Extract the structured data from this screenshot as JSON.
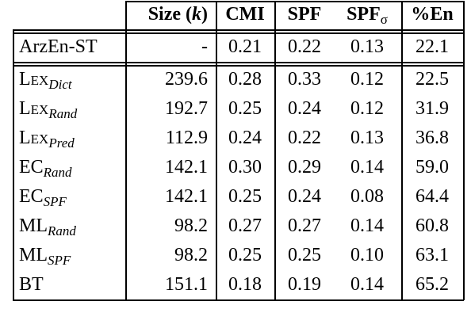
{
  "table": {
    "header": [
      null,
      [
        "Size (",
        "k",
        ")"
      ],
      [
        "CMI"
      ],
      [
        "SPF"
      ],
      [
        "SPF",
        "σ"
      ],
      [
        "%En"
      ]
    ],
    "rows": [
      {
        "name": {
          "base": "ArzEn-ST"
        },
        "values": [
          "-",
          "0.21",
          "0.22",
          "0.13",
          "22.1"
        ]
      },
      {
        "name": {
          "base": "Lex",
          "sub": "Dict",
          "small_caps": true
        },
        "values": [
          "239.6",
          "0.28",
          "0.33",
          "0.12",
          "22.5"
        ]
      },
      {
        "name": {
          "base": "Lex",
          "sub": "Rand",
          "small_caps": true
        },
        "values": [
          "192.7",
          "0.25",
          "0.24",
          "0.12",
          "31.9"
        ]
      },
      {
        "name": {
          "base": "Lex",
          "sub": "Pred",
          "small_caps": true
        },
        "values": [
          "112.9",
          "0.24",
          "0.22",
          "0.13",
          "36.8"
        ]
      },
      {
        "name": {
          "base": "EC",
          "sub": "Rand"
        },
        "values": [
          "142.1",
          "0.30",
          "0.29",
          "0.14",
          "59.0"
        ]
      },
      {
        "name": {
          "base": "EC",
          "sub": "SPF"
        },
        "values": [
          "142.1",
          "0.25",
          "0.24",
          "0.08",
          "64.4"
        ]
      },
      {
        "name": {
          "base": "ML",
          "sub": "Rand"
        },
        "values": [
          "98.2",
          "0.27",
          "0.27",
          "0.14",
          "60.8"
        ]
      },
      {
        "name": {
          "base": "ML",
          "sub": "SPF"
        },
        "values": [
          "98.2",
          "0.25",
          "0.25",
          "0.10",
          "63.1"
        ]
      },
      {
        "name": {
          "base": "BT"
        },
        "values": [
          "151.1",
          "0.18",
          "0.19",
          "0.14",
          "65.2"
        ]
      }
    ]
  }
}
